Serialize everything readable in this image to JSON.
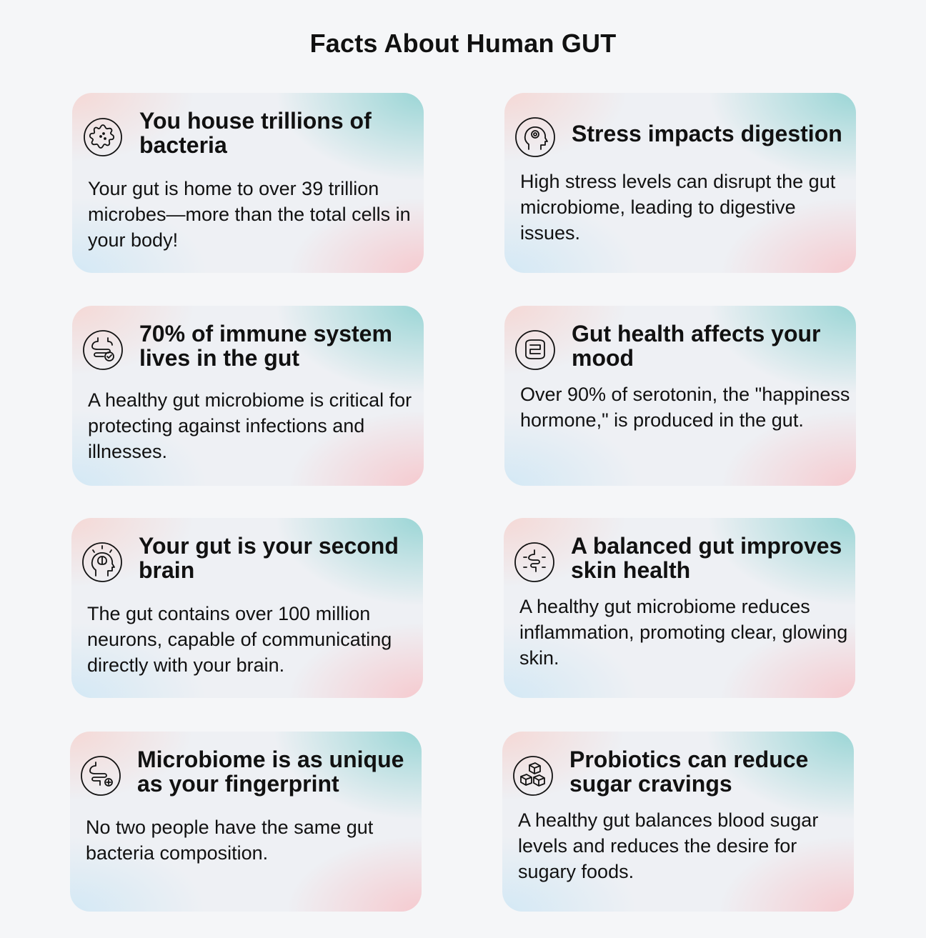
{
  "page_title": "Facts About Human GUT",
  "cards": [
    {
      "icon": "bacteria-icon",
      "title": "You house trillions of bacteria",
      "body": "Your gut is home to over 39 trillion microbes—more than the total cells in your body!"
    },
    {
      "icon": "stress-head-icon",
      "title": "Stress impacts digestion",
      "body": "High stress levels can disrupt the gut microbiome, leading to digestive issues."
    },
    {
      "icon": "intestine-check-icon",
      "title": "70% of immune system lives in the gut",
      "body": "A healthy gut microbiome is critical for protecting against infections and illnesses."
    },
    {
      "icon": "intestine-mood-icon",
      "title": "Gut health affects your mood",
      "body": "Over 90% of serotonin, the \"happiness hormone,\" is produced in the gut."
    },
    {
      "icon": "brain-head-icon",
      "title": "Your gut is your second brain",
      "body": "The gut contains over 100 million neurons, capable of communicating directly with your brain."
    },
    {
      "icon": "glowing-gut-icon",
      "title": "A balanced gut improves skin health",
      "body": "A healthy gut microbiome reduces inflammation, promoting clear, glowing skin."
    },
    {
      "icon": "intestine-fingerprint-icon",
      "title": "Microbiome is as unique as your fingerprint",
      "body": "No two people have the same gut bacteria composition."
    },
    {
      "icon": "sugar-cubes-icon",
      "title": "Probiotics can reduce sugar cravings",
      "body": "A healthy gut balances blood sugar levels and reduces the desire for sugary foods."
    }
  ]
}
